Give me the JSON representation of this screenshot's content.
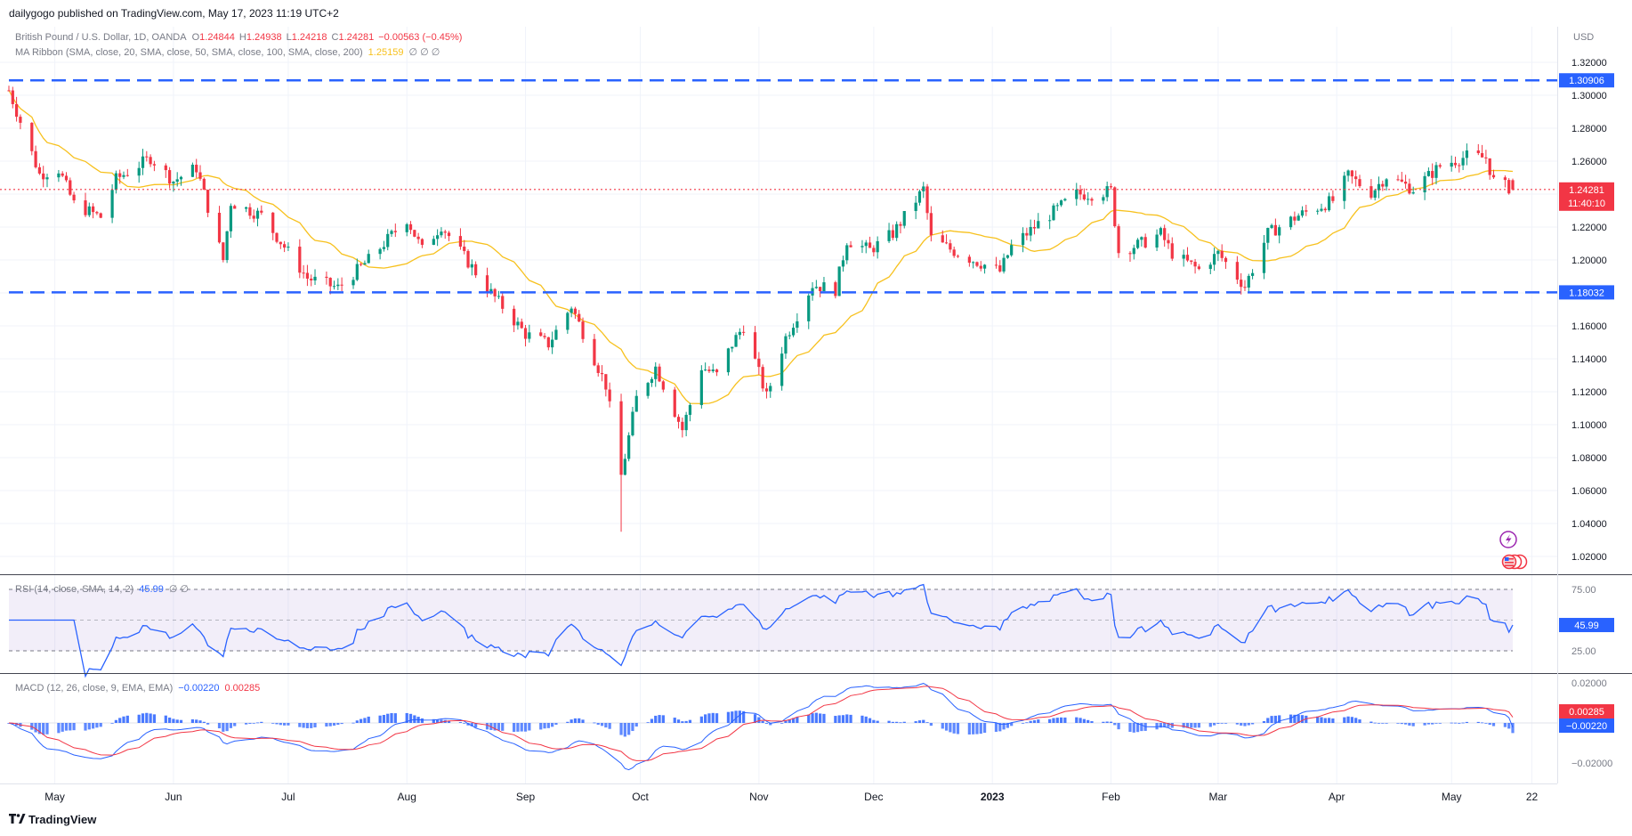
{
  "header": {
    "publisher": "dailygogo published on TradingView.com, May 17, 2023 11:19 UTC+2",
    "symbol": "British Pound / U.S. Dollar, 1D, OANDA",
    "ohlc": {
      "o_label": "O",
      "o": "1.24844",
      "h_label": "H",
      "h": "1.24938",
      "l_label": "L",
      "l": "1.24218",
      "c_label": "C",
      "c": "1.24281",
      "change": "−0.00563 (−0.45%)"
    },
    "ma_ribbon": "MA Ribbon (SMA, close, 20, SMA, close, 50, SMA, close, 100, SMA, close, 200)",
    "ma_value": "1.25159",
    "ma_nulls": "∅  ∅  ∅",
    "currency": "USD"
  },
  "price_axis": {
    "ticks": [
      "1.32000",
      "1.30000",
      "1.28000",
      "1.26000",
      "1.24000",
      "1.22000",
      "1.20000",
      "1.18000",
      "1.16000",
      "1.14000",
      "1.12000",
      "1.10000",
      "1.08000",
      "1.06000",
      "1.04000",
      "1.02000"
    ],
    "tick_values": [
      1.32,
      1.3,
      1.28,
      1.26,
      1.24,
      1.22,
      1.2,
      1.18,
      1.16,
      1.14,
      1.12,
      1.1,
      1.08,
      1.06,
      1.04,
      1.02
    ],
    "resistance_label": "1.30906",
    "support_label": "1.18032",
    "last_price_label": "1.24281",
    "countdown_label": "11:40:10"
  },
  "rsi": {
    "label": "RSI (14, close, SMA, 14, 2)",
    "value": "45.99",
    "nulls": "∅  ∅",
    "ticks": [
      "75.00",
      "25.00"
    ],
    "value_label": "45.99"
  },
  "macd": {
    "label": "MACD (12, 26, close, 9, EMA, EMA)",
    "macd_value": "−0.00220",
    "signal_value": "0.00285",
    "ticks": [
      "0.02000",
      "−0.02000"
    ],
    "signal_label": "0.00285",
    "macd_label": "−0.00220"
  },
  "time_axis": {
    "labels": [
      "May",
      "Jun",
      "Jul",
      "Aug",
      "Sep",
      "Oct",
      "Nov",
      "Dec",
      "2023",
      "Feb",
      "Mar",
      "Apr",
      "May",
      "22"
    ]
  },
  "footer": {
    "brand": "TradingView",
    "logo": "tv-logo-icon"
  },
  "icons": {
    "lightning": "lightning-icon",
    "flags": "us-gb-flag-icons"
  },
  "colors": {
    "up": "#089981",
    "down": "#f23645",
    "ma": "#f7c11e",
    "level": "#2962ff",
    "rsi_line": "#2962ff",
    "rsi_band": "#7e57c2",
    "macd_line": "#2962ff",
    "signal_line": "#f23645",
    "hist": "#2962ff"
  },
  "chart_data": {
    "type": "candlestick",
    "symbol": "GBPUSD",
    "interval": "1D",
    "levels": [
      {
        "name": "resistance",
        "value": 1.30906
      },
      {
        "name": "support",
        "value": 1.18032
      },
      {
        "name": "last",
        "value": 1.24281
      }
    ],
    "close_path": [
      {
        "date": "2022-04-19",
        "close": 1.303
      },
      {
        "date": "2022-04-22",
        "close": 1.284
      },
      {
        "date": "2022-04-27",
        "close": 1.252
      },
      {
        "date": "2022-05-02",
        "close": 1.255
      },
      {
        "date": "2022-05-06",
        "close": 1.234
      },
      {
        "date": "2022-05-13",
        "close": 1.226
      },
      {
        "date": "2022-05-17",
        "close": 1.249
      },
      {
        "date": "2022-05-26",
        "close": 1.262
      },
      {
        "date": "2022-06-01",
        "close": 1.248
      },
      {
        "date": "2022-06-07",
        "close": 1.256
      },
      {
        "date": "2022-06-14",
        "close": 1.2
      },
      {
        "date": "2022-06-16",
        "close": 1.235
      },
      {
        "date": "2022-06-24",
        "close": 1.227
      },
      {
        "date": "2022-07-06",
        "close": 1.189
      },
      {
        "date": "2022-07-14",
        "close": 1.183
      },
      {
        "date": "2022-07-22",
        "close": 1.2
      },
      {
        "date": "2022-08-01",
        "close": 1.225
      },
      {
        "date": "2022-08-05",
        "close": 1.206
      },
      {
        "date": "2022-08-10",
        "close": 1.221
      },
      {
        "date": "2022-08-15",
        "close": 1.205
      },
      {
        "date": "2022-08-23",
        "close": 1.18
      },
      {
        "date": "2022-09-01",
        "close": 1.155
      },
      {
        "date": "2022-09-07",
        "close": 1.149
      },
      {
        "date": "2022-09-13",
        "close": 1.172
      },
      {
        "date": "2022-09-22",
        "close": 1.124
      },
      {
        "date": "2022-09-26",
        "close": 1.069
      },
      {
        "date": "2022-09-30",
        "close": 1.116
      },
      {
        "date": "2022-10-05",
        "close": 1.135
      },
      {
        "date": "2022-10-12",
        "close": 1.097
      },
      {
        "date": "2022-10-17",
        "close": 1.135
      },
      {
        "date": "2022-10-21",
        "close": 1.13
      },
      {
        "date": "2022-10-25",
        "close": 1.149
      },
      {
        "date": "2022-10-28",
        "close": 1.16
      },
      {
        "date": "2022-11-03",
        "close": 1.117
      },
      {
        "date": "2022-11-08",
        "close": 1.153
      },
      {
        "date": "2022-11-15",
        "close": 1.185
      },
      {
        "date": "2022-11-21",
        "close": 1.182
      },
      {
        "date": "2022-11-24",
        "close": 1.212
      },
      {
        "date": "2022-11-30",
        "close": 1.206
      },
      {
        "date": "2022-12-06",
        "close": 1.216
      },
      {
        "date": "2022-12-14",
        "close": 1.243
      },
      {
        "date": "2022-12-16",
        "close": 1.213
      },
      {
        "date": "2022-12-23",
        "close": 1.204
      },
      {
        "date": "2023-01-03",
        "close": 1.193
      },
      {
        "date": "2023-01-06",
        "close": 1.208
      },
      {
        "date": "2023-01-13",
        "close": 1.222
      },
      {
        "date": "2023-01-23",
        "close": 1.24
      },
      {
        "date": "2023-01-27",
        "close": 1.24
      },
      {
        "date": "2023-02-01",
        "close": 1.242
      },
      {
        "date": "2023-02-03",
        "close": 1.205
      },
      {
        "date": "2023-02-10",
        "close": 1.211
      },
      {
        "date": "2023-02-14",
        "close": 1.216
      },
      {
        "date": "2023-02-17",
        "close": 1.204
      },
      {
        "date": "2023-02-24",
        "close": 1.194
      },
      {
        "date": "2023-03-01",
        "close": 1.204
      },
      {
        "date": "2023-03-08",
        "close": 1.184
      },
      {
        "date": "2023-03-14",
        "close": 1.216
      },
      {
        "date": "2023-03-22",
        "close": 1.227
      },
      {
        "date": "2023-03-31",
        "close": 1.236
      },
      {
        "date": "2023-04-04",
        "close": 1.251
      },
      {
        "date": "2023-04-10",
        "close": 1.241
      },
      {
        "date": "2023-04-14",
        "close": 1.251
      },
      {
        "date": "2023-04-21",
        "close": 1.243
      },
      {
        "date": "2023-04-28",
        "close": 1.257
      },
      {
        "date": "2023-05-05",
        "close": 1.263
      },
      {
        "date": "2023-05-10",
        "close": 1.262
      },
      {
        "date": "2023-05-12",
        "close": 1.248
      },
      {
        "date": "2023-05-17",
        "close": 1.24281
      }
    ]
  }
}
